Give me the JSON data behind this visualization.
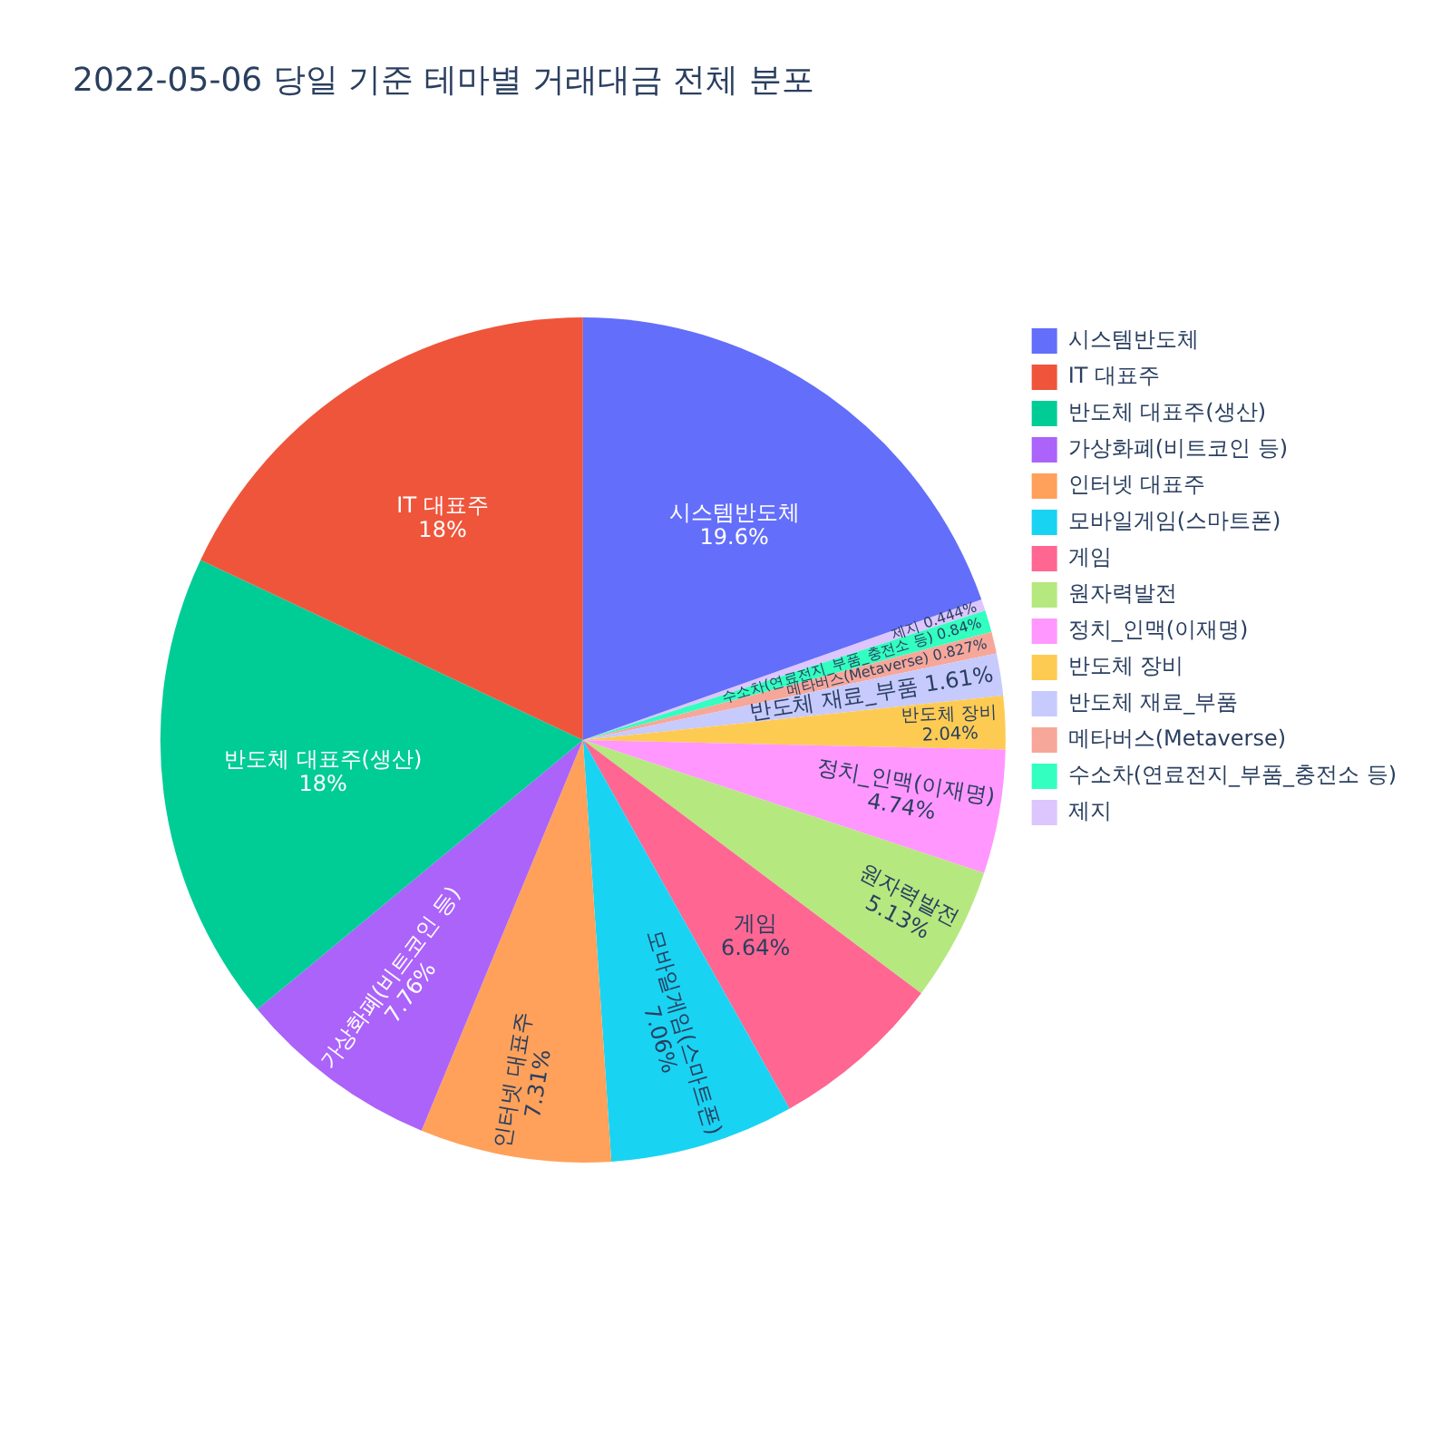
{
  "chart_data": {
    "type": "pie",
    "title": "2022-05-06 당일 기준 테마별 거래대금 전체 분포",
    "categories": [
      "시스템반도체",
      "IT 대표주",
      "반도체 대표주(생산)",
      "가상화폐(비트코인 등)",
      "인터넷 대표주",
      "모바일게임(스마트폰)",
      "게임",
      "원자력발전",
      "정치_인맥(이재명)",
      "반도체 장비",
      "반도체 재료_부품",
      "메타버스(Metaverse)",
      "수소차(연료전지_부품_충전소 등)",
      "제지"
    ],
    "values": [
      19.6,
      18,
      18,
      7.76,
      7.31,
      7.06,
      6.64,
      5.13,
      4.74,
      2.04,
      1.61,
      0.827,
      0.84,
      0.444
    ],
    "value_labels": [
      "19.6%",
      "18%",
      "18%",
      "7.76%",
      "7.31%",
      "7.06%",
      "6.64%",
      "5.13%",
      "4.74%",
      "2.04%",
      "1.61%",
      "0.827%",
      "0.84%",
      "0.444%"
    ],
    "colors": [
      "#636efa",
      "#ef553b",
      "#00cc96",
      "#ab63fa",
      "#ffa15a",
      "#19d3f3",
      "#ff6692",
      "#b6e880",
      "#ff97ff",
      "#fecb52",
      "#c6cafd",
      "#f7a799",
      "#33ffc0",
      "#dcc6fd"
    ],
    "legend": "top right"
  }
}
